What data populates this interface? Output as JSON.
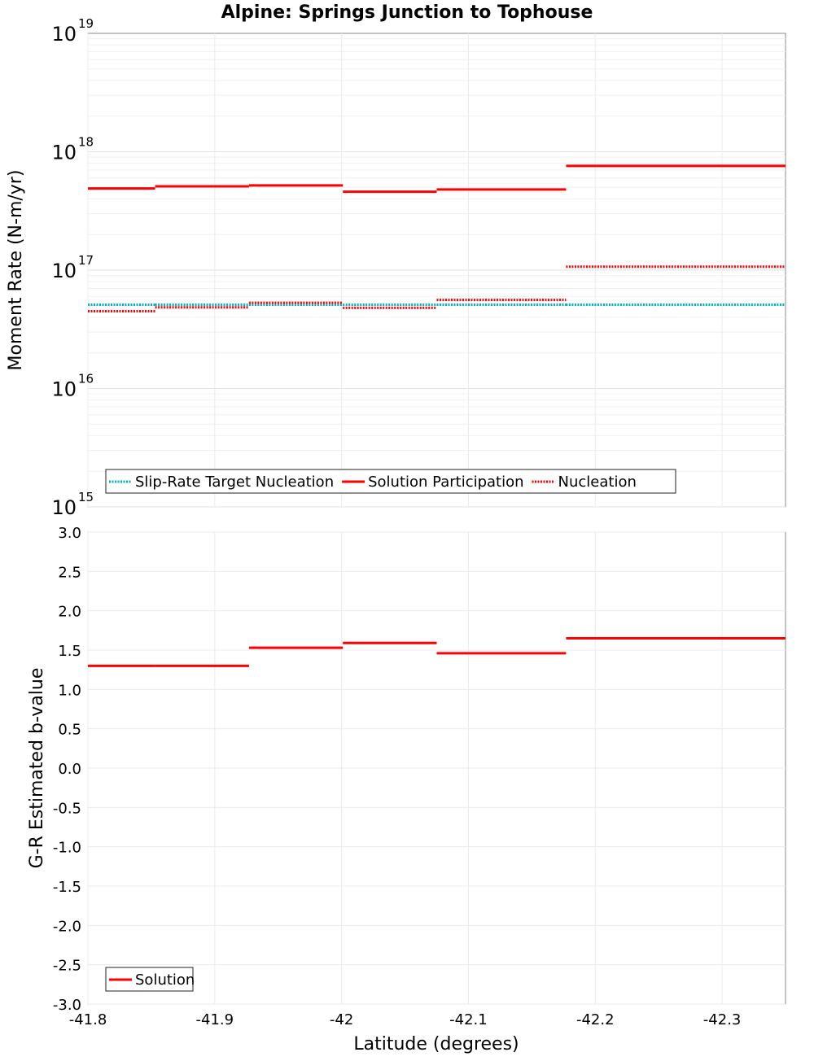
{
  "chart_data": [
    {
      "type": "line",
      "title": "Alpine: Springs Junction to Tophouse",
      "xlabel": "Latitude (degrees)",
      "ylabel": "Moment Rate (N-m/yr)",
      "yscale": "log",
      "ylim": [
        1000000000000000.0,
        1e+19
      ],
      "xlim": [
        -41.8,
        -42.35
      ],
      "y_tick_labels": [
        {
          "base": "10",
          "exp": "15"
        },
        {
          "base": "10",
          "exp": "16"
        },
        {
          "base": "10",
          "exp": "17"
        },
        {
          "base": "10",
          "exp": "18"
        },
        {
          "base": "10",
          "exp": "19"
        }
      ],
      "grid": true,
      "legend_position": "bottom-left",
      "series": [
        {
          "name": "Slip-Rate Target Nucleation",
          "color": "#00b4c8",
          "style": "dotted",
          "segments": [
            {
              "x0": -41.8,
              "x1": -41.853,
              "y": 5.1e+16
            },
            {
              "x0": -41.853,
              "x1": -41.927,
              "y": 5.1e+16
            },
            {
              "x0": -41.927,
              "x1": -42.001,
              "y": 5.1e+16
            },
            {
              "x0": -42.001,
              "x1": -42.075,
              "y": 5.1e+16
            },
            {
              "x0": -42.075,
              "x1": -42.177,
              "y": 5.1e+16
            },
            {
              "x0": -42.177,
              "x1": -42.35,
              "y": 5.1e+16
            }
          ]
        },
        {
          "name": "Solution Participation",
          "color": "#ff0000",
          "style": "solid",
          "segments": [
            {
              "x0": -41.8,
              "x1": -41.853,
              "y": 4.9e+17
            },
            {
              "x0": -41.853,
              "x1": -41.927,
              "y": 5.1e+17
            },
            {
              "x0": -41.927,
              "x1": -42.001,
              "y": 5.2e+17
            },
            {
              "x0": -42.001,
              "x1": -42.075,
              "y": 4.6e+17
            },
            {
              "x0": -42.075,
              "x1": -42.177,
              "y": 4.8e+17
            },
            {
              "x0": -42.177,
              "x1": -42.35,
              "y": 7.6e+17
            }
          ]
        },
        {
          "name": "Nucleation",
          "color": "#ff0000",
          "style": "dotted",
          "segments": [
            {
              "x0": -41.8,
              "x1": -41.853,
              "y": 4.5e+16
            },
            {
              "x0": -41.853,
              "x1": -41.927,
              "y": 4.85e+16
            },
            {
              "x0": -41.927,
              "x1": -42.001,
              "y": 5.3e+16
            },
            {
              "x0": -42.001,
              "x1": -42.075,
              "y": 4.8e+16
            },
            {
              "x0": -42.075,
              "x1": -42.177,
              "y": 5.6e+16
            },
            {
              "x0": -42.177,
              "x1": -42.35,
              "y": 1.07e+17
            }
          ]
        }
      ]
    },
    {
      "type": "line",
      "title": "",
      "xlabel": "Latitude (degrees)",
      "ylabel": "G-R Estimated b-value",
      "ylim": [
        -3.0,
        3.0
      ],
      "xlim": [
        -41.8,
        -42.35
      ],
      "x_ticks": [
        -41.8,
        -41.9,
        -42.0,
        -42.1,
        -42.2,
        -42.3
      ],
      "x_tick_labels": [
        "-41.8",
        "-41.9",
        "-42",
        "-42.1",
        "-42.2",
        "-42.3"
      ],
      "y_ticks": [
        3.0,
        2.5,
        2.0,
        1.5,
        1.0,
        0.5,
        0.0,
        -0.5,
        -1.0,
        -1.5,
        -2.0,
        -2.5,
        -3.0
      ],
      "y_tick_labels": [
        "3.0",
        "2.5",
        "2.0",
        "1.5",
        "1.0",
        "0.5",
        "0.0",
        "-0.5",
        "-1.0",
        "-1.5",
        "-2.0",
        "-2.5",
        "-3.0"
      ],
      "grid": true,
      "legend_position": "bottom-left",
      "series": [
        {
          "name": "Solution",
          "color": "#ff0000",
          "style": "solid",
          "segments": [
            {
              "x0": -41.8,
              "x1": -41.853,
              "y": 1.3
            },
            {
              "x0": -41.853,
              "x1": -41.927,
              "y": 1.3
            },
            {
              "x0": -41.927,
              "x1": -42.001,
              "y": 1.53
            },
            {
              "x0": -42.001,
              "x1": -42.075,
              "y": 1.59
            },
            {
              "x0": -42.075,
              "x1": -42.177,
              "y": 1.46
            },
            {
              "x0": -42.177,
              "x1": -42.35,
              "y": 1.65
            }
          ]
        }
      ]
    }
  ]
}
